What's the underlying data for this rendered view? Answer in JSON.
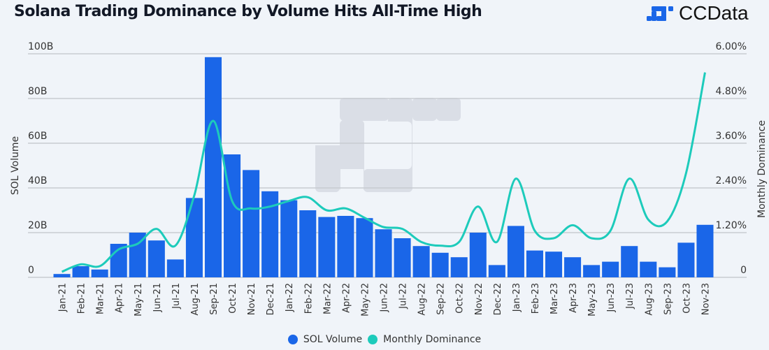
{
  "header": {
    "title": "Solana Trading Dominance by Volume Hits All-Time High",
    "brand": "CCData",
    "brand_icon": "ccdata-logo-icon"
  },
  "colors": {
    "bar": "#1a66e8",
    "line": "#1dcbbb",
    "grid": "#c8cbd1",
    "background": "#f0f4f9",
    "watermark": "#dadee6"
  },
  "chart_data": {
    "type": "bar",
    "title": "Solana Trading Dominance by Volume Hits All-Time High",
    "xlabel": "",
    "ylabel": "SOL Volume",
    "y2label": "Monthly Dominance",
    "ylim": [
      0,
      100
    ],
    "y2lim": [
      0,
      6
    ],
    "yticks": [
      "0",
      "20B",
      "40B",
      "60B",
      "80B",
      "100B"
    ],
    "y2ticks": [
      "0",
      "1.20%",
      "2.40%",
      "3.60%",
      "4.80%",
      "6.00%"
    ],
    "grid": true,
    "legend_position": "bottom-center",
    "categories": [
      "Jan-21",
      "Feb-21",
      "Mar-21",
      "Apr-21",
      "May-21",
      "Jun-21",
      "Jul-21",
      "Aug-21",
      "Sep-21",
      "Oct-21",
      "Nov-21",
      "Dec-21",
      "Jan-22",
      "Feb-22",
      "Mar-22",
      "Apr-22",
      "May-22",
      "Jun-22",
      "Jul-22",
      "Aug-22",
      "Sep-22",
      "Oct-22",
      "Nov-22",
      "Dec-22",
      "Jan-23",
      "Feb-23",
      "Mar-23",
      "Apr-23",
      "May-23",
      "Jun-23",
      "Jul-23",
      "Aug-23",
      "Sep-23",
      "Oct-23",
      "Nov-23"
    ],
    "series": [
      {
        "name": "SOL Volume",
        "type": "bar",
        "axis": "left",
        "unit": "B",
        "values": [
          1.5,
          5,
          3.5,
          15,
          20,
          16.5,
          8,
          35.5,
          98.5,
          55,
          48,
          38.5,
          34.5,
          30,
          27,
          27.5,
          26.5,
          21.5,
          17.5,
          14,
          11,
          9,
          20,
          5.5,
          23,
          12,
          11.5,
          9,
          5.5,
          7,
          14,
          7,
          4.5,
          15.5,
          23.5
        ]
      },
      {
        "name": "Monthly Dominance",
        "type": "line",
        "axis": "right",
        "unit": "%",
        "values": [
          0.15,
          0.35,
          0.3,
          0.75,
          0.9,
          1.3,
          0.85,
          2.2,
          4.2,
          2.05,
          1.85,
          1.9,
          2.05,
          2.15,
          1.8,
          1.85,
          1.6,
          1.35,
          1.3,
          0.95,
          0.85,
          0.95,
          1.9,
          0.95,
          2.65,
          1.25,
          1.05,
          1.4,
          1.05,
          1.25,
          2.65,
          1.55,
          1.5,
          2.8,
          5.5
        ]
      }
    ]
  },
  "legend": [
    {
      "label": "SOL Volume",
      "color": "#1a66e8"
    },
    {
      "label": "Monthly Dominance",
      "color": "#1dcbbb"
    }
  ]
}
